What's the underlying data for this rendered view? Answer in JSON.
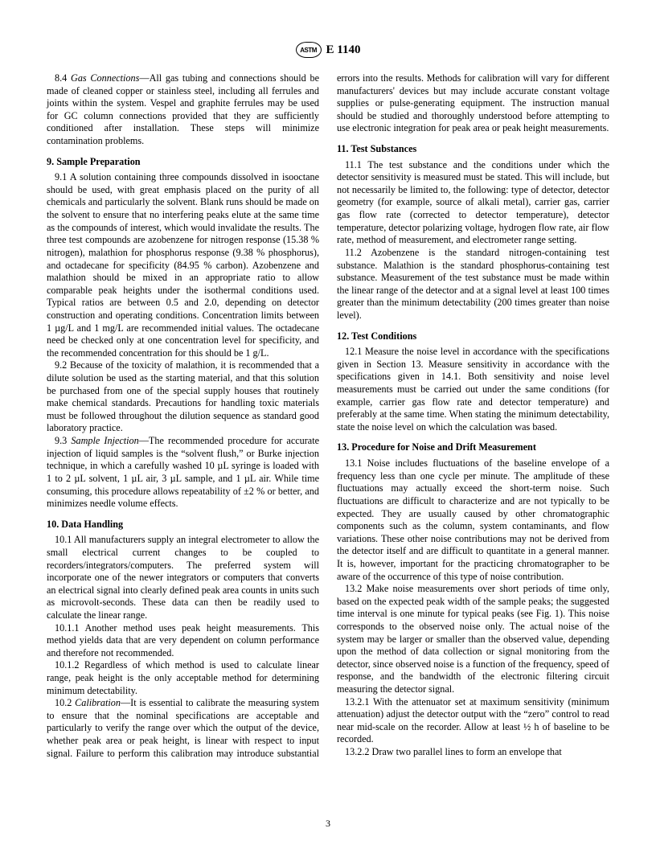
{
  "header": {
    "logo_text": "ASTM",
    "designation": "E 1140"
  },
  "page_number": "3",
  "sections": [
    {
      "paragraphs": [
        {
          "num": "8.4",
          "lead_italic": "Gas Connections",
          "text": "—All gas tubing and connections should be made of cleaned copper or stainless steel, including all ferrules and joints within the system. Vespel and graphite ferrules may be used for GC column connections provided that they are sufficiently conditioned after installation. These steps will minimize contamination problems."
        }
      ]
    },
    {
      "heading": "9. Sample Preparation",
      "paragraphs": [
        {
          "num": "9.1",
          "text": "A solution containing three compounds dissolved in isooctane should be used, with great emphasis placed on the purity of all chemicals and particularly the solvent. Blank runs should be made on the solvent to ensure that no interfering peaks elute at the same time as the compounds of interest, which would invalidate the results. The three test compounds are azobenzene for nitrogen response (15.38 % nitrogen), malathion for phosphorus response (9.38 % phosphorus), and octadecane for specificity (84.95 % carbon). Azobenzene and malathion should be mixed in an appropriate ratio to allow comparable peak heights under the isothermal conditions used. Typical ratios are between 0.5 and 2.0, depending on detector construction and operating conditions. Concentration limits between 1 µg/L and 1 mg/L are recommended initial values. The octadecane need be checked only at one concentration level for specificity, and the recommended concentration for this should be 1 g/L."
        },
        {
          "num": "9.2",
          "text": "Because of the toxicity of malathion, it is recommended that a dilute solution be used as the starting material, and that this solution be purchased from one of the special supply houses that routinely make chemical standards. Precautions for handling toxic materials must be followed throughout the dilution sequence as standard good laboratory practice."
        },
        {
          "num": "9.3",
          "lead_italic": "Sample Injection",
          "text": "—The recommended procedure for accurate injection of liquid samples is the “solvent flush,” or Burke injection technique, in which a carefully washed 10 µL syringe is loaded with 1 to 2 µL solvent, 1 µL air, 3 µL sample, and 1 µL air. While time consuming, this procedure allows repeatability of ±2 % or better, and minimizes needle volume effects."
        }
      ]
    },
    {
      "heading": "10. Data Handling",
      "paragraphs": [
        {
          "num": "10.1",
          "text": "All manufacturers supply an integral electrometer to allow the small electrical current changes to be coupled to recorders/integrators/computers. The preferred system will incorporate one of the newer integrators or computers that converts an electrical signal into clearly defined peak area counts in units such as microvolt-seconds. These data can then be readily used to calculate the linear range."
        },
        {
          "num": "10.1.1",
          "text": "Another method uses peak height measurements. This method yields data that are very dependent on column performance and therefore not recommended."
        },
        {
          "num": "10.1.2",
          "text": "Regardless of which method is used to calculate linear range, peak height is the only acceptable method for determining minimum detectability."
        },
        {
          "num": "10.2",
          "lead_italic": "Calibration",
          "text": "—It is essential to calibrate the measuring system to ensure that the nominal specifications are acceptable and particularly to verify the range over which the output of the device, whether peak area or peak height, is linear with respect to input signal. Failure to perform this calibration may introduce substantial errors into the results. Methods for calibration will vary for different manufacturers' devices but may include accurate constant voltage supplies or pulse-generating equipment. The instruction manual should be studied and thoroughly understood before attempting to use electronic integration for peak area or peak height measurements."
        }
      ]
    },
    {
      "heading": "11. Test Substances",
      "paragraphs": [
        {
          "num": "11.1",
          "text": "The test substance and the conditions under which the detector sensitivity is measured must be stated. This will include, but not necessarily be limited to, the following: type of detector, detector geometry (for example, source of alkali metal), carrier gas, carrier gas flow rate (corrected to detector temperature), detector temperature, detector polarizing voltage, hydrogen flow rate, air flow rate, method of measurement, and electrometer range setting."
        },
        {
          "num": "11.2",
          "text": "Azobenzene is the standard nitrogen-containing test substance. Malathion is the standard phosphorus-containing test substance. Measurement of the test substance must be made within the linear range of the detector and at a signal level at least 100 times greater than the minimum detectability (200 times greater than noise level)."
        }
      ]
    },
    {
      "heading": "12. Test Conditions",
      "paragraphs": [
        {
          "num": "12.1",
          "text": "Measure the noise level in accordance with the specifications given in Section 13. Measure sensitivity in accordance with the specifications given in 14.1. Both sensitivity and noise level measurements must be carried out under the same conditions (for example, carrier gas flow rate and detector temperature) and preferably at the same time. When stating the minimum detectability, state the noise level on which the calculation was based."
        }
      ]
    },
    {
      "heading": "13. Procedure for Noise and Drift Measurement",
      "paragraphs": [
        {
          "num": "13.1",
          "text": "Noise includes fluctuations of the baseline envelope of a frequency less than one cycle per minute. The amplitude of these fluctuations may actually exceed the short-term noise. Such fluctuations are difficult to characterize and are not typically to be expected. They are usually caused by other chromatographic components such as the column, system contaminants, and flow variations. These other noise contributions may not be derived from the detector itself and are difficult to quantitate in a general manner. It is, however, important for the practicing chromatographer to be aware of the occurrence of this type of noise contribution."
        },
        {
          "num": "13.2",
          "text": "Make noise measurements over short periods of time only, based on the expected peak width of the sample peaks; the suggested time interval is one minute for typical peaks (see Fig. 1). This noise corresponds to the observed noise only. The actual noise of the system may be larger or smaller than the observed value, depending upon the method of data collection or signal monitoring from the detector, since observed noise is a function of the frequency, speed of response, and the bandwidth of the electronic filtering circuit measuring the detector signal."
        },
        {
          "num": "13.2.1",
          "text": "With the attenuator set at maximum sensitivity (minimum attenuation) adjust the detector output with the “zero” control to read near mid-scale on the recorder. Allow at least ½ h of baseline to be recorded."
        },
        {
          "num": "13.2.2",
          "text": "Draw two parallel lines to form an envelope that"
        }
      ]
    }
  ]
}
